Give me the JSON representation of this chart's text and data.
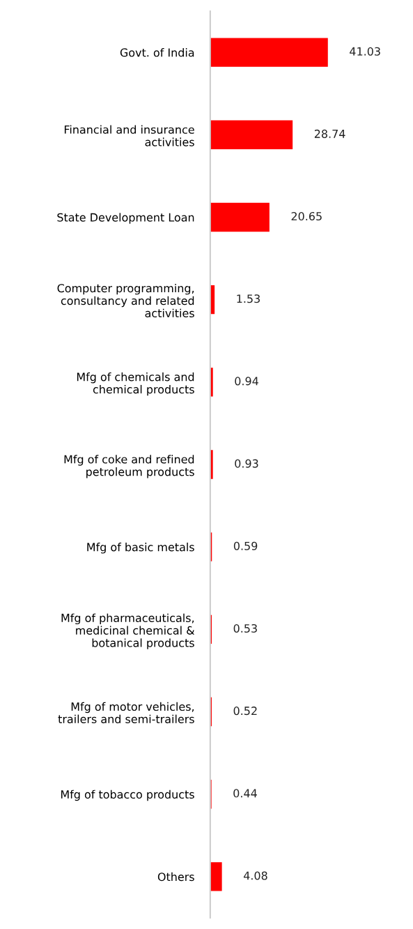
{
  "chart_data": {
    "type": "bar",
    "orientation": "horizontal",
    "categories": [
      "Govt. of India",
      "Financial and insurance\nactivities",
      "State Development Loan",
      "Computer programming,\nconsultancy and related\nactivities",
      "Mfg of chemicals and\nchemical products",
      "Mfg of coke and refined\npetroleum products",
      "Mfg of basic metals",
      "Mfg of pharmaceuticals,\nmedicinal chemical &\nbotanical products",
      "Mfg of motor vehicles,\ntrailers and semi-trailers",
      "Mfg of tobacco products",
      "Others"
    ],
    "values": [
      41.03,
      28.74,
      20.65,
      1.53,
      0.94,
      0.93,
      0.59,
      0.53,
      0.52,
      0.44,
      4.08
    ],
    "color": "#ff0000",
    "data_labels": true,
    "grid": false,
    "legend": false
  }
}
